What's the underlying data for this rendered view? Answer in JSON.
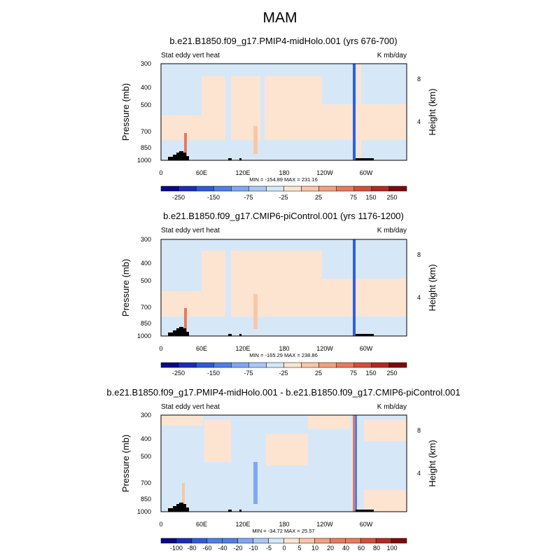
{
  "main_title": "MAM",
  "chart_data": [
    {
      "type": "heatmap",
      "title": "b.e21.B1850.f09_g17.PMIP4-midHolo.001 (yrs 676-700)",
      "left_label": "Stat eddy vert heat",
      "right_label": "K mb/day",
      "ylabel": "Pressure (mb)",
      "ylabel_right": "Height (km)",
      "y_ticks": [
        "300",
        "400",
        "500",
        "700",
        "850",
        "1000"
      ],
      "y_right_ticks": [
        "8",
        "4"
      ],
      "x_ticks": [
        "0",
        "60E",
        "120E",
        "180",
        "120W",
        "60W"
      ],
      "stats": "MIN = -154.89   MAX = 231.16",
      "colorbar_labels": [
        "-250",
        "-150",
        "-75",
        "-25",
        "25",
        "75",
        "150",
        "250"
      ]
    },
    {
      "type": "heatmap",
      "title": "b.e21.B1850.f09_g17.CMIP6-piControl.001 (yrs 1176-1200)",
      "left_label": "Stat eddy vert heat",
      "right_label": "K mb/day",
      "ylabel": "Pressure (mb)",
      "ylabel_right": "Height (km)",
      "y_ticks": [
        "300",
        "400",
        "500",
        "700",
        "850",
        "1000"
      ],
      "y_right_ticks": [
        "8",
        "4"
      ],
      "x_ticks": [
        "0",
        "60E",
        "120E",
        "180",
        "120W",
        "60W"
      ],
      "stats": "MIN = -165.29   MAX = 238.86",
      "colorbar_labels": [
        "-250",
        "-150",
        "-75",
        "-25",
        "25",
        "75",
        "150",
        "250"
      ]
    },
    {
      "type": "heatmap",
      "title": "b.e21.B1850.f09_g17.PMIP4-midHolo.001 - b.e21.B1850.f09_g17.CMIP6-piControl.001",
      "left_label": "Stat eddy vert heat",
      "right_label": "K mb/day",
      "ylabel": "Pressure (mb)",
      "ylabel_right": "Height (km)",
      "y_ticks": [
        "300",
        "400",
        "500",
        "700",
        "850",
        "1000"
      ],
      "y_right_ticks": [
        "8",
        "4"
      ],
      "x_ticks": [
        "0",
        "60E",
        "120E",
        "180",
        "120W",
        "60W"
      ],
      "stats": "MIN = -34.72   MAX =  25.57",
      "colorbar_labels": [
        "-100",
        "-80",
        "-60",
        "-40",
        "-20",
        "-10",
        "-5",
        "0",
        "5",
        "10",
        "20",
        "40",
        "60",
        "80",
        "100"
      ]
    }
  ],
  "colors": {
    "pos_light": "#fde4d1",
    "neg_light": "#d6e8f8",
    "neg_dark": "#2f60dc",
    "pos_mid": "#f2a07f",
    "terrain": "#000000",
    "colorbar_ramp": [
      "#08088a",
      "#1a2db5",
      "#2f5ad6",
      "#4f7fe6",
      "#7fa7f2",
      "#a9c8f5",
      "#d6e8f8",
      "#fde4d1",
      "#f9c6a8",
      "#f2a07f",
      "#e87a5c",
      "#d2503b",
      "#b22a22",
      "#7e0a0a"
    ]
  }
}
